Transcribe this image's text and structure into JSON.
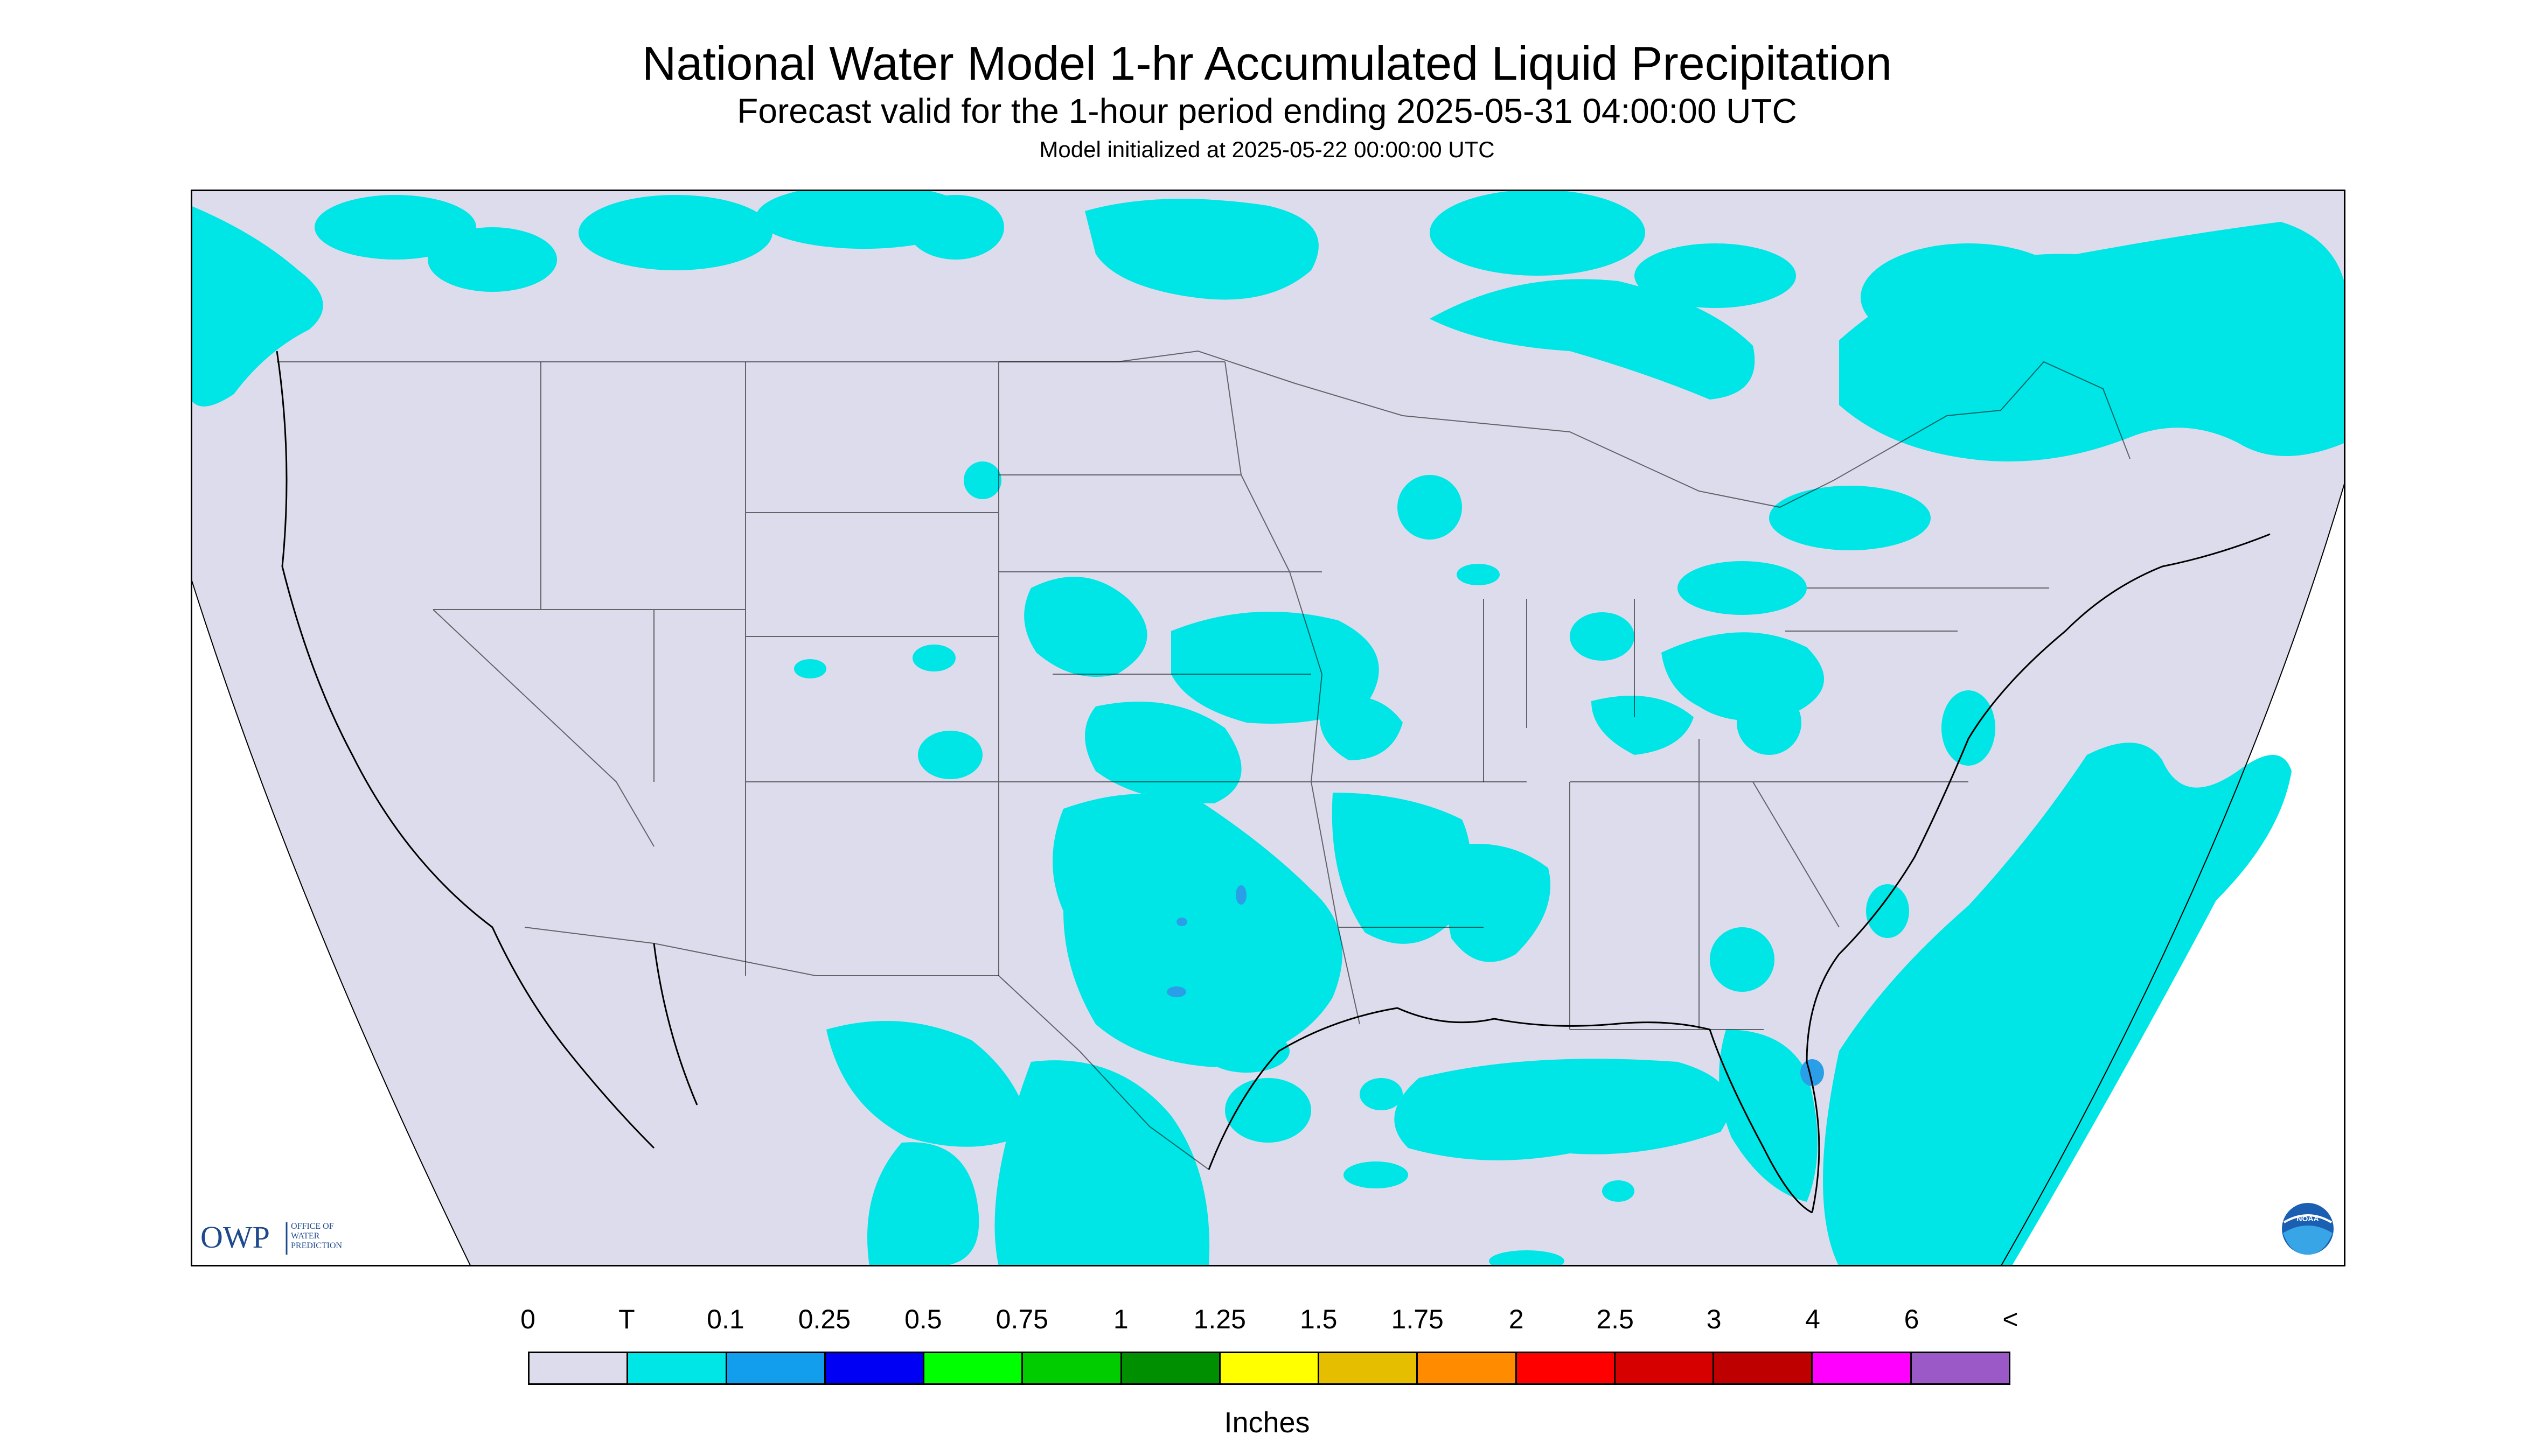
{
  "header": {
    "title": "National Water Model 1-hr Accumulated Liquid Precipitation",
    "subtitle": "Forecast valid for the 1-hour period ending 2025-05-31 04:00:00 UTC",
    "init": "Model initialized at 2025-05-22 00:00:00 UTC"
  },
  "map": {
    "background_color": "#dcdcec",
    "outside_color": "#ffffff",
    "boundary_color": "#000000",
    "precip_color": "#00e5e5",
    "precip_heavier_color": "#2a9fe8",
    "logo_owp": {
      "mark": "OWP",
      "text_lines": [
        "OFFICE OF",
        "WATER",
        "PREDICTION"
      ]
    },
    "logo_noaa": {
      "text": "NOAA",
      "icon": "noaa-emblem-icon"
    }
  },
  "legend": {
    "labels": [
      "0",
      "T",
      "0.1",
      "0.25",
      "0.5",
      "0.75",
      "1",
      "1.25",
      "1.5",
      "1.75",
      "2",
      "2.5",
      "3",
      "4",
      "6",
      "<"
    ],
    "colors": [
      "#dcdcec",
      "#00e5e5",
      "#139ded",
      "#0000f5",
      "#00ff00",
      "#00cc00",
      "#008f00",
      "#ffff00",
      "#e6be00",
      "#ff8c00",
      "#ff0000",
      "#d70000",
      "#be0000",
      "#ff00ff",
      "#9b59c7"
    ],
    "units": "Inches"
  }
}
